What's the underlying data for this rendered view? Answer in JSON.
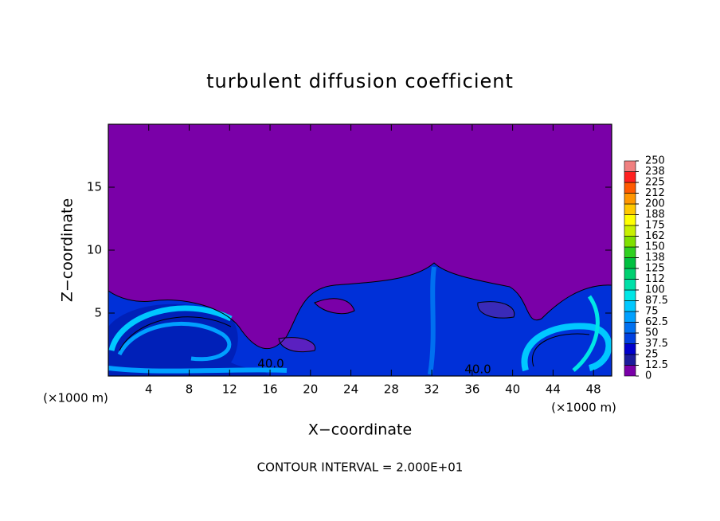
{
  "chart_data": {
    "type": "contour",
    "title": "turbulent diffusion coefficient",
    "xlabel": "X−coordinate",
    "ylabel": "Z−coordinate",
    "xunit": "(×1000 m)",
    "yunit": "(×1000 m)",
    "note": "CONTOUR INTERVAL = 2.000E+01",
    "contour_labels": [
      "40.0",
      "40.0"
    ],
    "xlim": [
      0,
      49.8
    ],
    "ylim": [
      0,
      20
    ],
    "xticks": [
      4,
      8,
      12,
      16,
      20,
      24,
      28,
      32,
      36,
      40,
      44,
      48
    ],
    "yticks": [
      5,
      10,
      15
    ],
    "colorbar": {
      "ticks": [
        0,
        12.5,
        25,
        37.5,
        50,
        62.5,
        75,
        87.5,
        100,
        {
          "value": 112.5,
          "label": "112"
        },
        125,
        {
          "value": 137.5,
          "label": "138"
        },
        150,
        {
          "value": 162.5,
          "label": "162"
        },
        175,
        {
          "value": 187.5,
          "label": "188"
        },
        200,
        {
          "value": 212.5,
          "label": "212"
        },
        225,
        {
          "value": 237.5,
          "label": "238"
        },
        250
      ],
      "colors": [
        "#7a00a8",
        "#1c1c9c",
        "#0000cc",
        "#0040e0",
        "#0070f0",
        "#00a0ff",
        "#00c8ff",
        "#00e6e6",
        "#00e0a8",
        "#00d070",
        "#00c040",
        "#30d020",
        "#80e000",
        "#c8f000",
        "#ffff00",
        "#ffc800",
        "#ff9600",
        "#ff5a00",
        "#ff2020",
        "#f08080"
      ]
    }
  }
}
